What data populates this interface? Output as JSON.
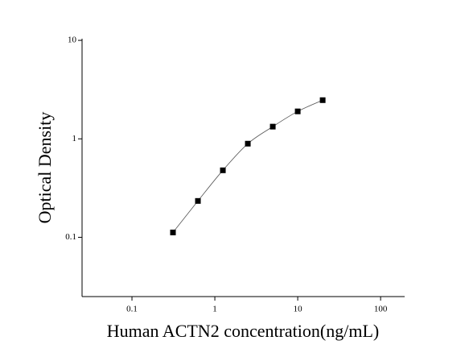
{
  "chart_data": {
    "type": "scatter",
    "x_label": "Human ACTN2 concentration(ng/mL)",
    "y_label": "Optical Density",
    "x_scale": "log",
    "y_scale": "log",
    "x": [
      0.3125,
      0.625,
      1.25,
      2.5,
      5,
      10,
      20
    ],
    "series": [
      {
        "color": "#000000",
        "values": [
          0.112,
          0.234,
          0.479,
          0.893,
          1.33,
          1.9,
          2.47
        ]
      }
    ],
    "fit_line": true,
    "xlim": [
      0.025,
      195
    ],
    "xticks": [
      0.1,
      1,
      10,
      100
    ],
    "ylim": [
      0.025,
      10.4
    ],
    "yticks": [
      0.1,
      1,
      10
    ]
  }
}
